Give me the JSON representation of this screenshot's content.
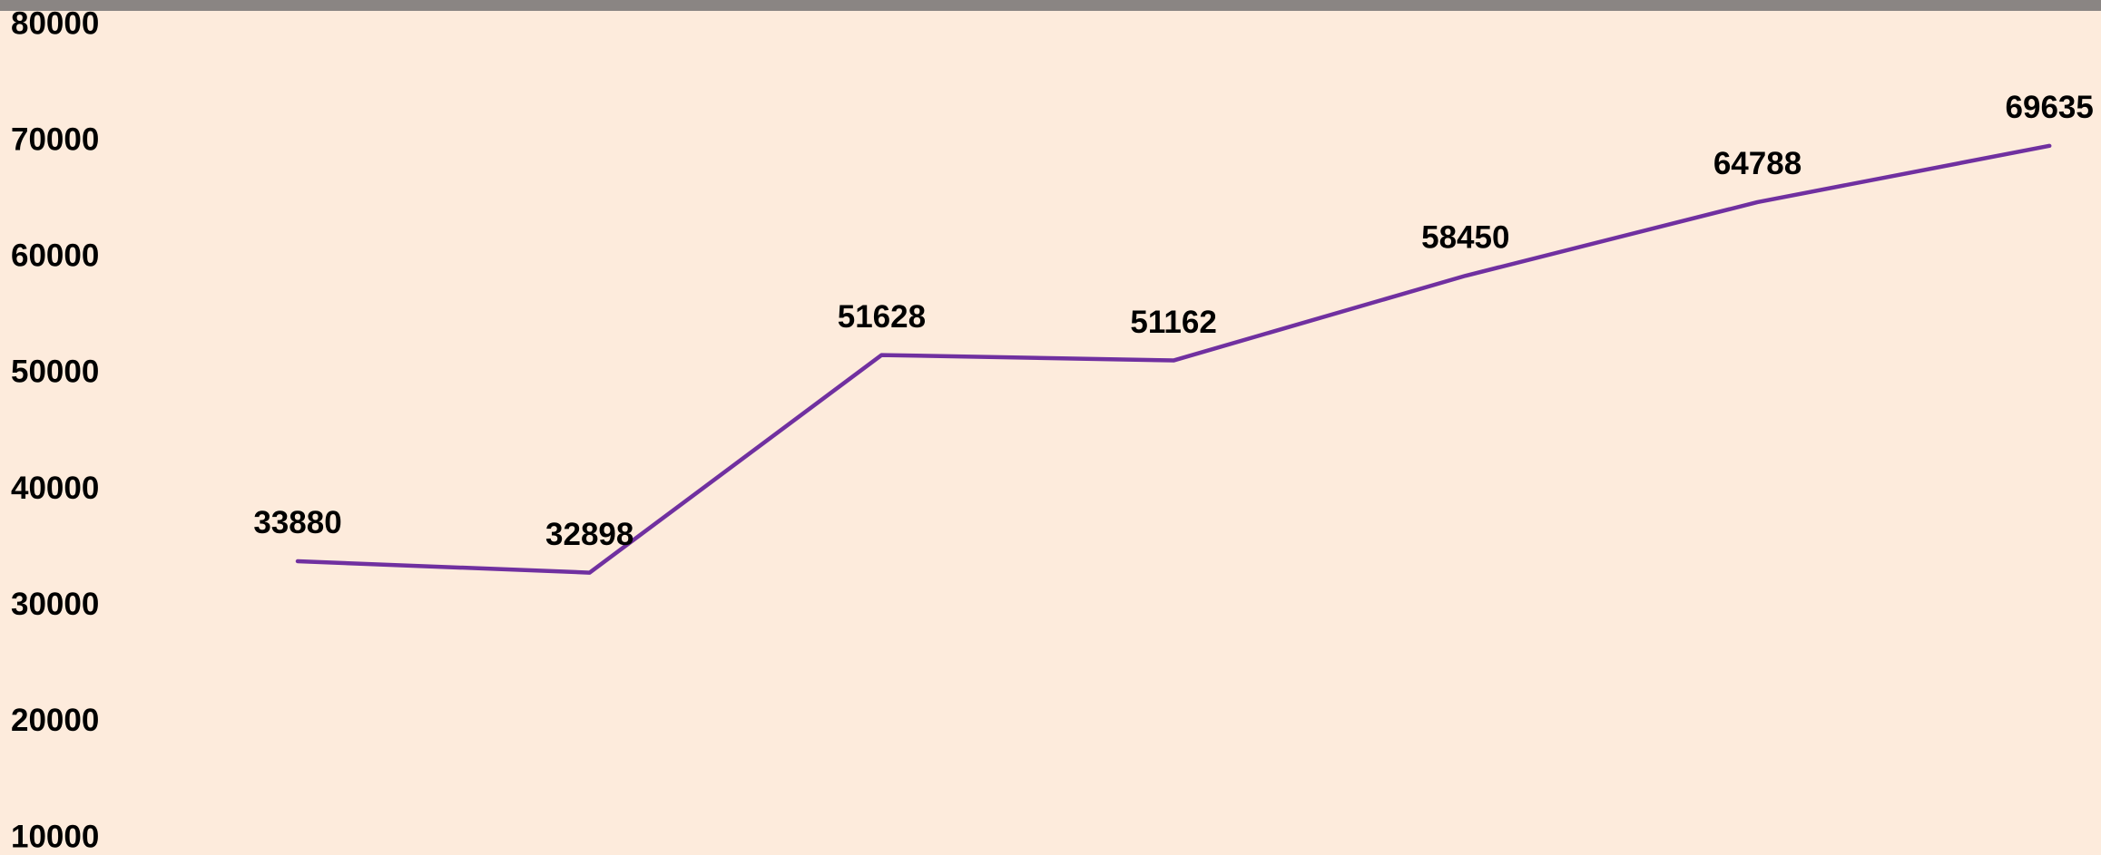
{
  "chart_data": {
    "type": "line",
    "categories": [
      null,
      null,
      null,
      null,
      null,
      null,
      null
    ],
    "values": [
      33880,
      32898,
      51628,
      51162,
      58450,
      64788,
      69635
    ],
    "color": "#7030a0",
    "ylim": [
      10000,
      80000
    ],
    "yticks": [
      10000,
      20000,
      30000,
      40000,
      50000,
      60000,
      70000,
      80000
    ],
    "grid": false
  }
}
